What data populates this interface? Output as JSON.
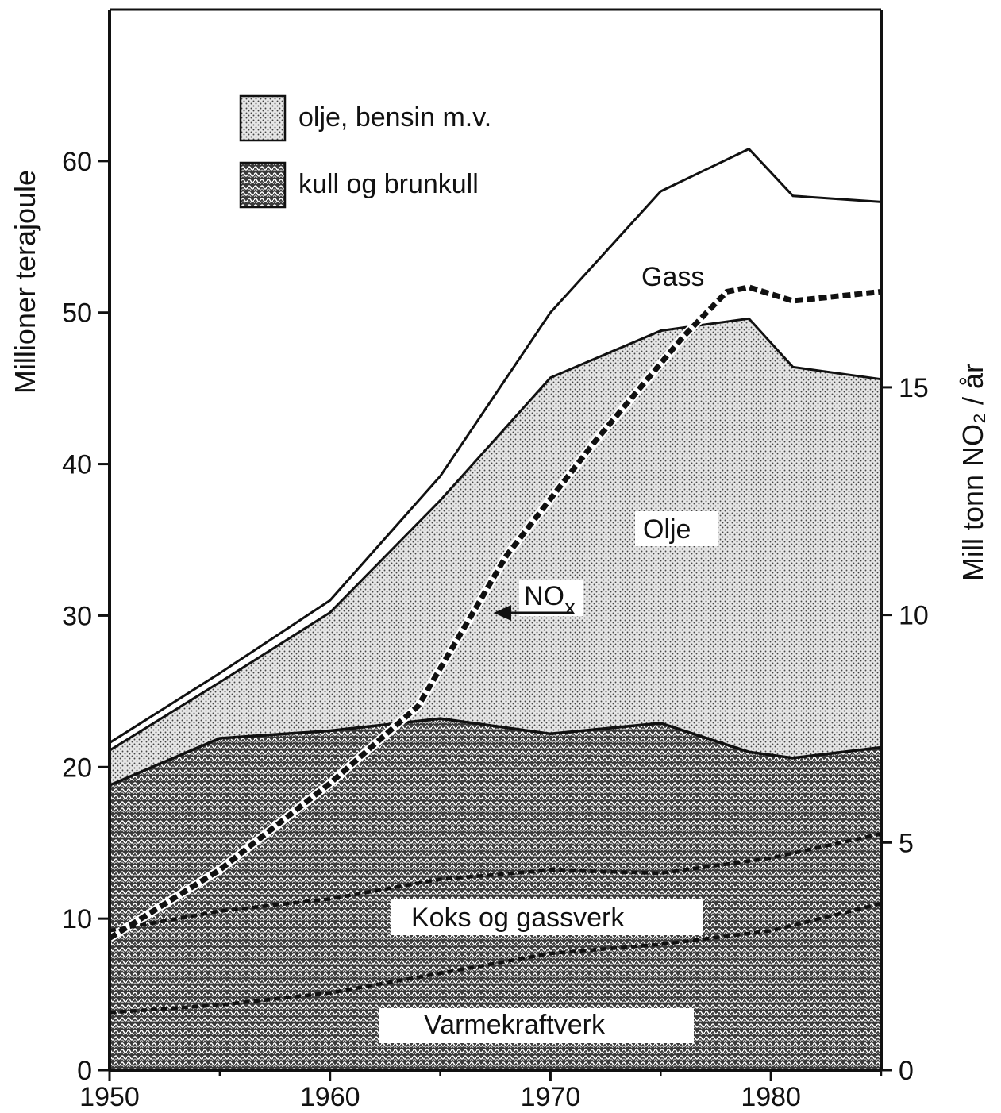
{
  "chart_data": {
    "type": "area",
    "title": "",
    "x": [
      1950,
      1955,
      1960,
      1965,
      1970,
      1975,
      1979,
      1981,
      1985
    ],
    "xlim": [
      1950,
      1985
    ],
    "x_ticks": [
      "1950",
      "1960",
      "1970",
      "1980"
    ],
    "x_tick_values": [
      1950,
      1960,
      1970,
      1980
    ],
    "ylabel": "Millioner terajoule",
    "ylim": [
      0,
      70
    ],
    "y_ticks": [
      "0",
      "10",
      "20",
      "30",
      "40",
      "50",
      "60"
    ],
    "y_tick_values": [
      0,
      10,
      20,
      30,
      40,
      50,
      60
    ],
    "y2label": "Mill tonn NO₂ / år",
    "y2lim": [
      0,
      23.3
    ],
    "y2_ticks": [
      "0",
      "5",
      "10",
      "15"
    ],
    "y2_tick_values": [
      0,
      5,
      10,
      15
    ],
    "grid": false,
    "legend_position": "top-left",
    "legend": [
      {
        "label": "olje, bensin m.v.",
        "pattern": "light-dots"
      },
      {
        "label": "kull og brunkull",
        "pattern": "dark-crosshatch"
      }
    ],
    "series": [
      {
        "name": "kull og brunkull",
        "values": [
          18.8,
          21.9,
          22.4,
          23.2,
          22.2,
          22.9,
          21.0,
          20.6,
          21.3
        ]
      },
      {
        "name": "olje, bensin m.v.",
        "values": [
          21.1,
          25.6,
          30.2,
          37.6,
          45.7,
          48.8,
          49.6,
          46.4,
          45.6
        ]
      },
      {
        "name": "Gass",
        "values": [
          21.6,
          26.2,
          31.0,
          39.2,
          50.0,
          58.0,
          60.8,
          57.7,
          57.3
        ]
      }
    ],
    "nox": {
      "label_main": "NO",
      "label_sub": "x",
      "x": [
        1950,
        1955,
        1960,
        1964,
        1968,
        1972,
        1976,
        1978,
        1979,
        1981,
        1985
      ],
      "values": [
        2.9,
        4.4,
        6.3,
        8.0,
        11.3,
        13.8,
        16.1,
        17.1,
        17.2,
        16.9,
        17.1
      ]
    },
    "koks": {
      "x": [
        1950,
        1955,
        1960,
        1965,
        1970,
        1975,
        1980,
        1985
      ],
      "values": [
        9.2,
        10.5,
        11.3,
        12.6,
        13.2,
        13.0,
        14.0,
        15.6
      ]
    },
    "varme": {
      "x": [
        1950,
        1955,
        1960,
        1965,
        1970,
        1975,
        1980,
        1985
      ],
      "values": [
        3.8,
        4.3,
        5.1,
        6.4,
        7.7,
        8.3,
        9.2,
        11.0
      ]
    },
    "annotations": {
      "gass": "Gass",
      "olje": "Olje",
      "koks": "Koks og gassverk",
      "varme": "Varmekraftverk"
    }
  }
}
